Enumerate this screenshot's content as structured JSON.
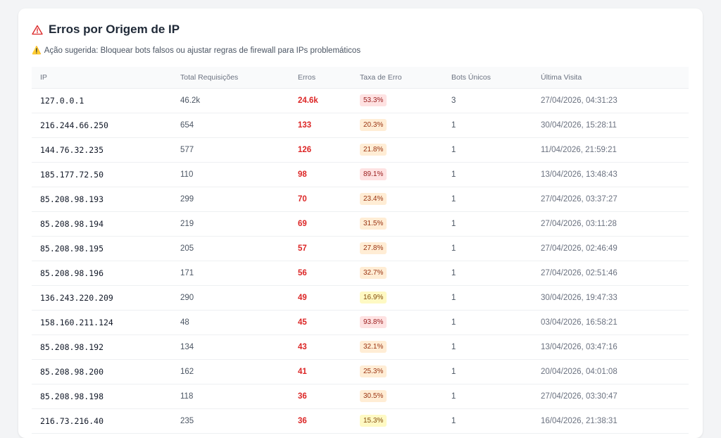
{
  "header": {
    "title": "Erros por Origem de IP",
    "icon": "alert-triangle-icon",
    "icon_color": "#dc2626"
  },
  "suggestion": {
    "icon": "warning-emoji",
    "text": "Ação sugerida: Bloquear bots falsos ou ajustar regras de firewall para IPs problemáticos"
  },
  "table": {
    "columns": [
      "IP",
      "Total Requisições",
      "Erros",
      "Taxa de Erro",
      "Bots Únicos",
      "Última Visita"
    ],
    "rows": [
      {
        "ip": "127.0.0.1",
        "total": "46.2k",
        "errors": "24.6k",
        "rate": "53.3%",
        "rate_level": "red",
        "bots": "3",
        "last": "27/04/2026, 04:31:23"
      },
      {
        "ip": "216.244.66.250",
        "total": "654",
        "errors": "133",
        "rate": "20.3%",
        "rate_level": "orange",
        "bots": "1",
        "last": "30/04/2026, 15:28:11"
      },
      {
        "ip": "144.76.32.235",
        "total": "577",
        "errors": "126",
        "rate": "21.8%",
        "rate_level": "orange",
        "bots": "1",
        "last": "11/04/2026, 21:59:21"
      },
      {
        "ip": "185.177.72.50",
        "total": "110",
        "errors": "98",
        "rate": "89.1%",
        "rate_level": "red",
        "bots": "1",
        "last": "13/04/2026, 13:48:43"
      },
      {
        "ip": "85.208.98.193",
        "total": "299",
        "errors": "70",
        "rate": "23.4%",
        "rate_level": "orange",
        "bots": "1",
        "last": "27/04/2026, 03:37:27"
      },
      {
        "ip": "85.208.98.194",
        "total": "219",
        "errors": "69",
        "rate": "31.5%",
        "rate_level": "orange",
        "bots": "1",
        "last": "27/04/2026, 03:11:28"
      },
      {
        "ip": "85.208.98.195",
        "total": "205",
        "errors": "57",
        "rate": "27.8%",
        "rate_level": "orange",
        "bots": "1",
        "last": "27/04/2026, 02:46:49"
      },
      {
        "ip": "85.208.98.196",
        "total": "171",
        "errors": "56",
        "rate": "32.7%",
        "rate_level": "orange",
        "bots": "1",
        "last": "27/04/2026, 02:51:46"
      },
      {
        "ip": "136.243.220.209",
        "total": "290",
        "errors": "49",
        "rate": "16.9%",
        "rate_level": "yellow",
        "bots": "1",
        "last": "30/04/2026, 19:47:33"
      },
      {
        "ip": "158.160.211.124",
        "total": "48",
        "errors": "45",
        "rate": "93.8%",
        "rate_level": "red",
        "bots": "1",
        "last": "03/04/2026, 16:58:21"
      },
      {
        "ip": "85.208.98.192",
        "total": "134",
        "errors": "43",
        "rate": "32.1%",
        "rate_level": "orange",
        "bots": "1",
        "last": "13/04/2026, 03:47:16"
      },
      {
        "ip": "85.208.98.200",
        "total": "162",
        "errors": "41",
        "rate": "25.3%",
        "rate_level": "orange",
        "bots": "1",
        "last": "20/04/2026, 04:01:08"
      },
      {
        "ip": "85.208.98.198",
        "total": "118",
        "errors": "36",
        "rate": "30.5%",
        "rate_level": "orange",
        "bots": "1",
        "last": "27/04/2026, 03:30:47"
      },
      {
        "ip": "216.73.216.40",
        "total": "235",
        "errors": "36",
        "rate": "15.3%",
        "rate_level": "yellow",
        "bots": "1",
        "last": "16/04/2026, 21:38:31"
      }
    ]
  }
}
